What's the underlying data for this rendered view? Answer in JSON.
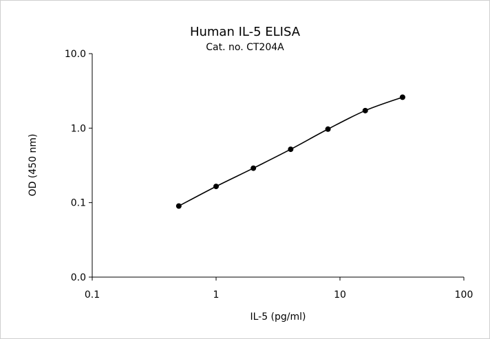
{
  "chart_data": {
    "type": "line",
    "title": "Human IL-5 ELISA",
    "subtitle": "Cat. no. CT204A",
    "xlabel": "IL-5 (pg/ml)",
    "ylabel": "OD (450 nm)",
    "x_scale": "log",
    "y_scale": "log",
    "xlim": [
      0.1,
      100
    ],
    "x_ticks": [
      0.1,
      1,
      10,
      100
    ],
    "x_tick_labels": [
      "0.1",
      "1",
      "10",
      "100"
    ],
    "y_ticks": [
      0.01,
      0.1,
      1.0,
      10.0
    ],
    "y_tick_labels": [
      "0.0",
      "0.1",
      "1.0",
      "10.0"
    ],
    "ylim": [
      0.01,
      10
    ],
    "grid": false,
    "legend": "none",
    "line_color": "#000000",
    "marker": "filled-circle",
    "series": [
      {
        "x": [
          0.5,
          1,
          2,
          4,
          8,
          16,
          32
        ],
        "y": [
          0.09,
          0.165,
          0.29,
          0.52,
          0.97,
          1.72,
          2.6
        ]
      }
    ]
  }
}
